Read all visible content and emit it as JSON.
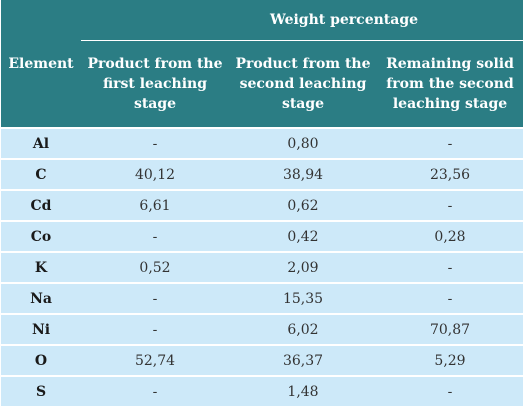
{
  "header": {
    "element_label": "Element",
    "group_label": "Weight percentage",
    "columns": [
      "Product from the first leaching stage",
      "Product from the second leaching stage",
      "Remaining solid from the second leaching stage"
    ]
  },
  "rows": [
    {
      "element": "Al",
      "values": [
        "-",
        "0,80",
        "-"
      ]
    },
    {
      "element": "C",
      "values": [
        "40,12",
        "38,94",
        "23,56"
      ]
    },
    {
      "element": "Cd",
      "values": [
        "6,61",
        "0,62",
        "-"
      ]
    },
    {
      "element": "Co",
      "values": [
        "-",
        "0,42",
        "0,28"
      ]
    },
    {
      "element": "K",
      "values": [
        "0,52",
        "2,09",
        "-"
      ]
    },
    {
      "element": "Na",
      "values": [
        "-",
        "15,35",
        "-"
      ]
    },
    {
      "element": "Ni",
      "values": [
        "-",
        "6,02",
        "70,87"
      ]
    },
    {
      "element": "O",
      "values": [
        "52,74",
        "36,37",
        "5,29"
      ]
    },
    {
      "element": "S",
      "values": [
        "-",
        "1,48",
        "-"
      ]
    }
  ]
}
